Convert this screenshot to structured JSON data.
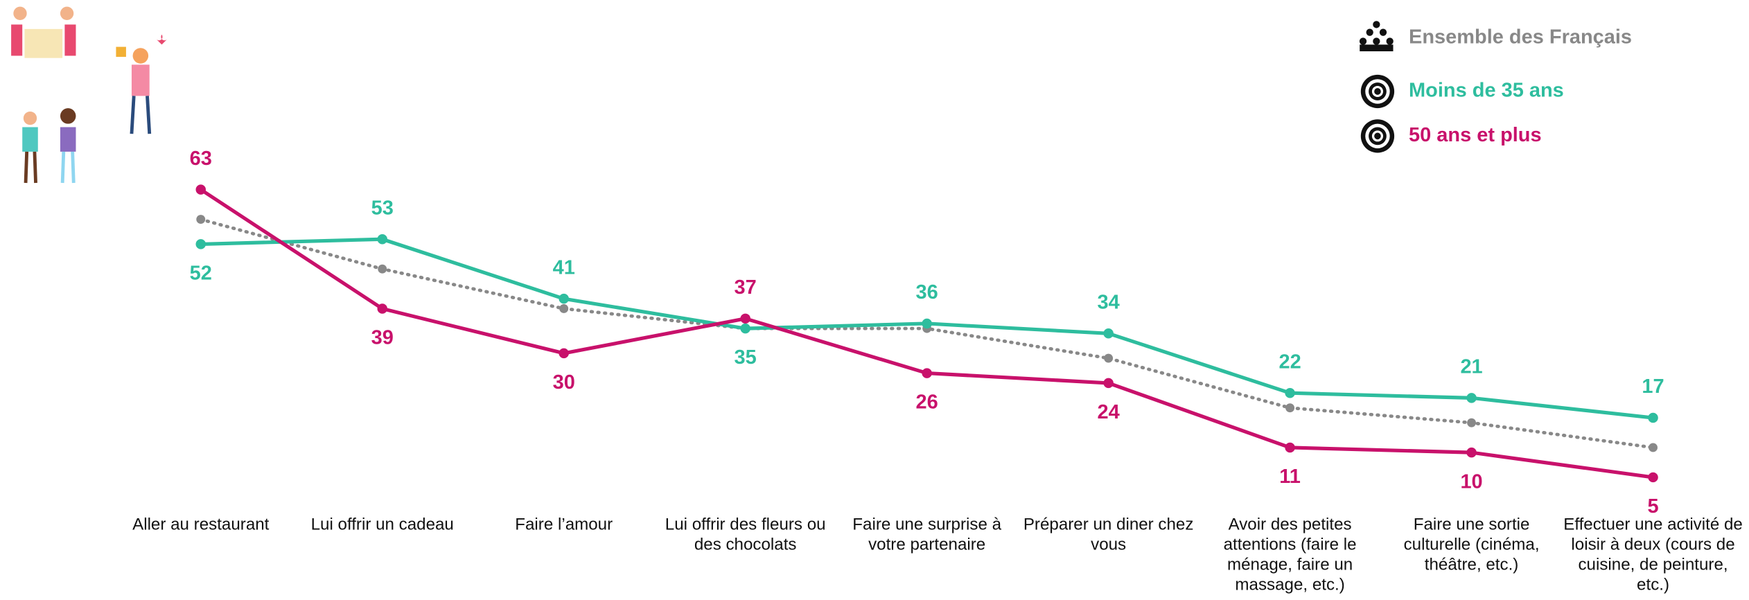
{
  "chart_data": {
    "type": "line",
    "categories": [
      "Aller au restaurant",
      "Lui offrir un cadeau",
      "Faire l’amour",
      "Lui offrir des fleurs ou des chocolats",
      "Faire une surprise à votre partenaire",
      "Préparer un diner chez vous",
      "Avoir des petites attentions (faire le ménage, faire un massage, etc.)",
      "Faire une sortie culturelle (cinéma, théâtre, etc.)",
      "Effectuer une activité de loisir à deux (cours de cuisine, de peinture, etc.)"
    ],
    "series": [
      {
        "name": "Ensemble des Français",
        "color": "#888888",
        "dash": true,
        "labels": false,
        "values": [
          57,
          47,
          39,
          35,
          35,
          29,
          19,
          16,
          11
        ]
      },
      {
        "name": "Moins de 35 ans",
        "color": "#2ebd9e",
        "dash": false,
        "labels": true,
        "values": [
          52,
          53,
          41,
          35,
          36,
          34,
          22,
          21,
          17
        ]
      },
      {
        "name": "50 ans et plus",
        "color": "#c8116b",
        "dash": false,
        "labels": true,
        "values": [
          63,
          39,
          30,
          37,
          26,
          24,
          11,
          10,
          5
        ]
      }
    ]
  }
}
